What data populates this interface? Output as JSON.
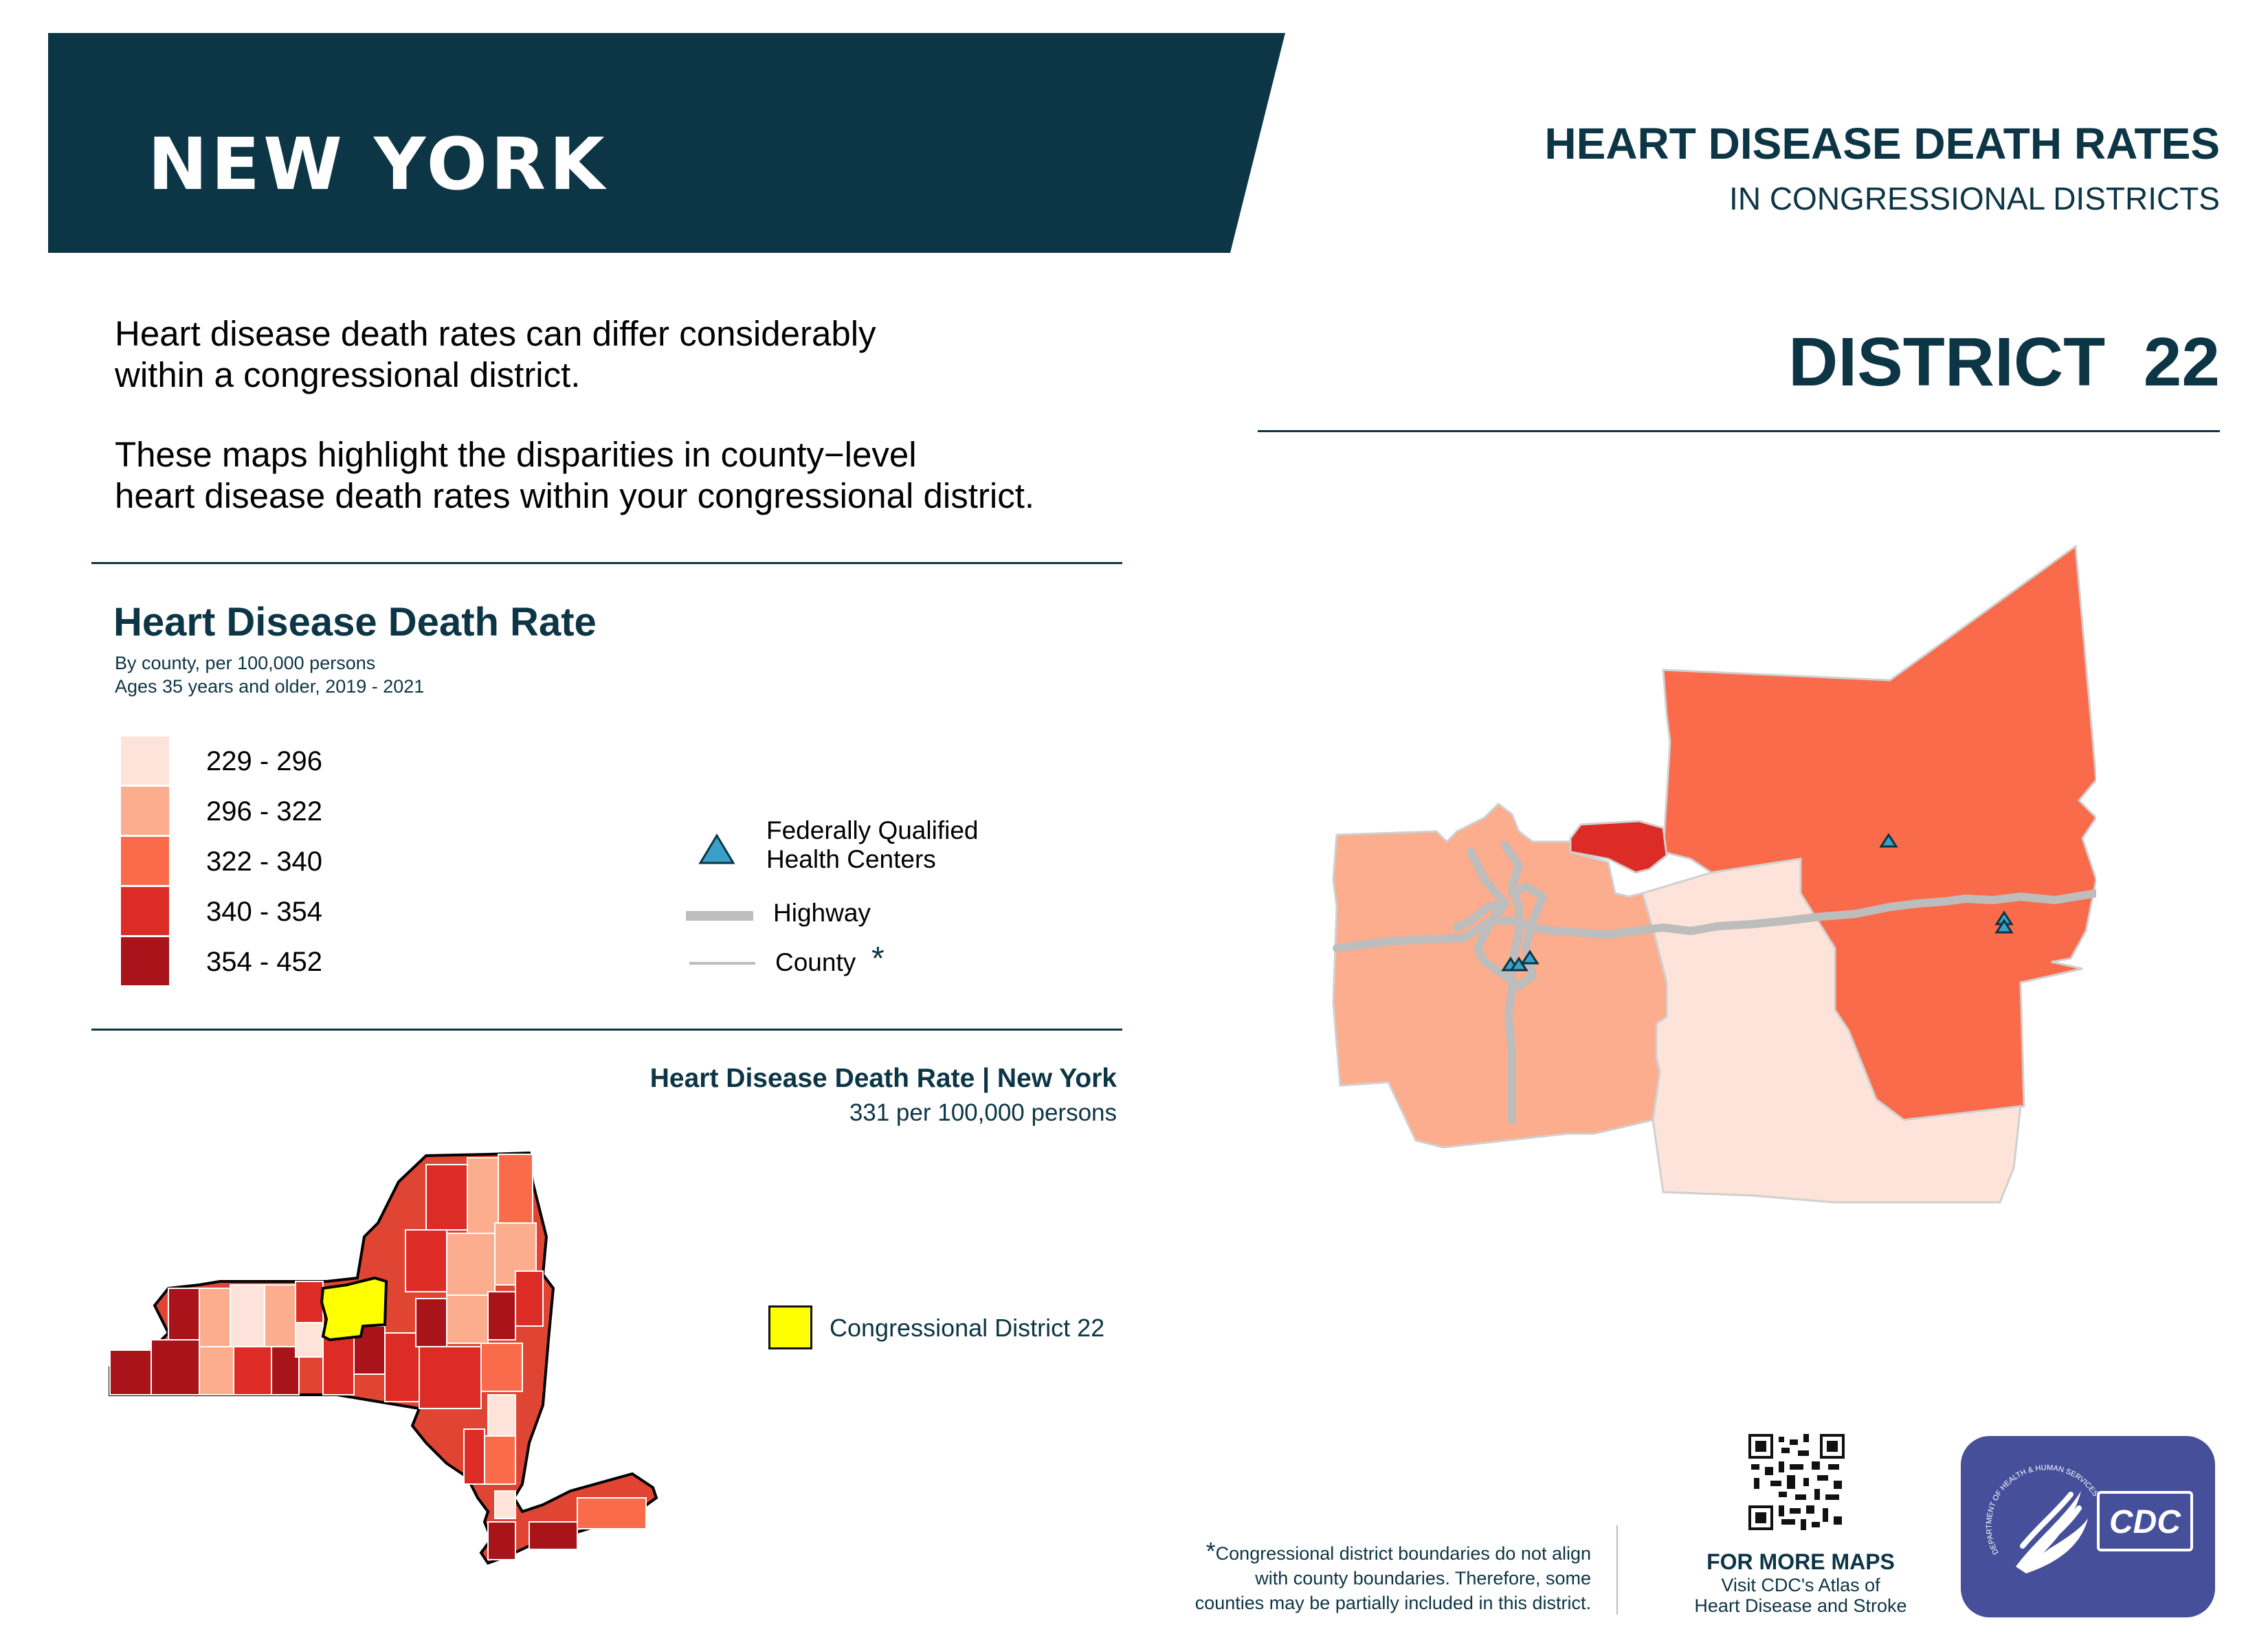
{
  "header": {
    "state": "NEW YORK",
    "title": "HEART DISEASE DEATH RATES",
    "subtitle": "IN CONGRESSIONAL DISTRICTS",
    "district": "DISTRICT  22"
  },
  "intro": {
    "line1": "Heart disease death rates can differ considerably",
    "line2": "within a congressional district.",
    "line3": "These maps highlight the disparities in county−level",
    "line4": "heart disease death rates within your congressional district."
  },
  "legend": {
    "title": "Heart Disease Death Rate",
    "subtitle1": "By county, per 100,000 persons",
    "subtitle2": "Ages 35 years and older, 2019 - 2021",
    "bins": [
      {
        "label": "229 - 296",
        "color": "#fde3d9"
      },
      {
        "label": "296 - 322",
        "color": "#fbad8d"
      },
      {
        "label": "322 - 340",
        "color": "#f96b4b"
      },
      {
        "label": "340 - 354",
        "color": "#dc2c25"
      },
      {
        "label": "354 - 452",
        "color": "#a81419"
      }
    ],
    "fqhc_line1": "Federally Qualified",
    "fqhc_line2": "Health Centers",
    "highway": "Highway",
    "county": "County",
    "asterisk": "*"
  },
  "state_summary": {
    "title": "Heart Disease Death Rate | New York",
    "value": "331 per 100,000 persons",
    "district_label": "Congressional District 22",
    "highlight_color": "#ffff00"
  },
  "footer": {
    "asterisk": "*",
    "note_line1": "Congressional district boundaries do not align",
    "note_line2": "with county boundaries. Therefore, some",
    "note_line3": "counties may be partially included in this district.",
    "more_maps": "FOR MORE MAPS",
    "more_maps_line1": "Visit CDC's Atlas of",
    "more_maps_line2": "Heart Disease and Stroke",
    "logo_text": "CDC",
    "hhs_ring_text": "DEPARTMENT OF HEALTH & HUMAN SERVICES · USA"
  },
  "colors": {
    "navy": "#0c3545",
    "fqhc_marker": "#3aa0c8",
    "highway": "#bdbdbd",
    "logo_bg": "#454f9a"
  },
  "icons": {
    "fqhc": "triangle-icon",
    "qr": "qr-code-icon",
    "hhs": "hhs-eagle-logo",
    "cdc": "cdc-logo"
  }
}
